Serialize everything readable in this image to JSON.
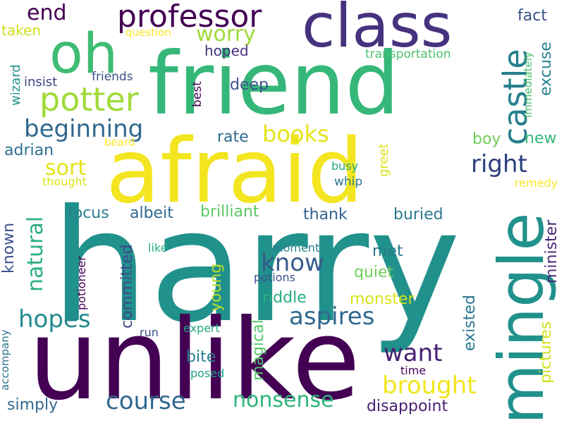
{
  "colors": {
    "background": "#ffffff",
    "palette": [
      "#440154",
      "#46327e",
      "#365c8d",
      "#277f8e",
      "#1fa187",
      "#4ac16d",
      "#a0da39",
      "#fde725"
    ]
  },
  "words": [
    {
      "text": "harry",
      "color": "#21918c"
    },
    {
      "text": "unlike",
      "color": "#440154"
    },
    {
      "text": "afraid",
      "color": "#f3e51f"
    },
    {
      "text": "friend",
      "color": "#35b779"
    },
    {
      "text": "class",
      "color": "#46327e"
    },
    {
      "text": "oh",
      "color": "#3fbc73"
    },
    {
      "text": "mingle",
      "color": "#21918c"
    },
    {
      "text": "professor",
      "color": "#440154"
    },
    {
      "text": "potter",
      "color": "#a0da39"
    },
    {
      "text": "castle",
      "color": "#277f8e"
    },
    {
      "text": "beginning",
      "color": "#31688e"
    },
    {
      "text": "right",
      "color": "#2c3f7e"
    },
    {
      "text": "books",
      "color": "#e5e419"
    },
    {
      "text": "know",
      "color": "#365c8d"
    },
    {
      "text": "aspires",
      "color": "#31688e"
    },
    {
      "text": "hopes",
      "color": "#23898e"
    },
    {
      "text": "want",
      "color": "#482173"
    },
    {
      "text": "brought",
      "color": "#f1e51d"
    },
    {
      "text": "course",
      "color": "#31688e"
    },
    {
      "text": "nonsense",
      "color": "#2fb47c"
    },
    {
      "text": "natural",
      "color": "#2ab07f"
    },
    {
      "text": "sort",
      "color": "#e2e418"
    },
    {
      "text": "worry",
      "color": "#a0da39"
    },
    {
      "text": "end",
      "color": "#440154"
    },
    {
      "text": "fact",
      "color": "#3b528b"
    },
    {
      "text": "hoped",
      "color": "#46327e"
    },
    {
      "text": "deep",
      "color": "#3b528b"
    },
    {
      "text": "rate",
      "color": "#31688e"
    },
    {
      "text": "boy",
      "color": "#6ece58"
    },
    {
      "text": "new",
      "color": "#35b779"
    },
    {
      "text": "excuse",
      "color": "#26828e"
    },
    {
      "text": "adrian",
      "color": "#2c728e"
    },
    {
      "text": "focus",
      "color": "#27808e"
    },
    {
      "text": "albeit",
      "color": "#31688e"
    },
    {
      "text": "brilliant",
      "color": "#5ec962"
    },
    {
      "text": "thank",
      "color": "#33628d"
    },
    {
      "text": "buried",
      "color": "#2a788e"
    },
    {
      "text": "met",
      "color": "#287c8e"
    },
    {
      "text": "quiet",
      "color": "#6ece58"
    },
    {
      "text": "riddle",
      "color": "#29af7f"
    },
    {
      "text": "monster",
      "color": "#d8e219"
    },
    {
      "text": "committed",
      "color": "#3e4989"
    },
    {
      "text": "young",
      "color": "#b5de2b"
    },
    {
      "text": "existed",
      "color": "#2a788e"
    },
    {
      "text": "minister",
      "color": "#482878"
    },
    {
      "text": "pictures",
      "color": "#d0e11c"
    },
    {
      "text": "bite",
      "color": "#277f8e"
    },
    {
      "text": "magical",
      "color": "#52c569"
    },
    {
      "text": "disappoint",
      "color": "#482173"
    },
    {
      "text": "simply",
      "color": "#31688e"
    },
    {
      "text": "known",
      "color": "#3b528b"
    },
    {
      "text": "taken",
      "color": "#d0e11c"
    },
    {
      "text": "question",
      "color": "#fde725"
    },
    {
      "text": "wizard",
      "color": "#21918c"
    },
    {
      "text": "insist",
      "color": "#414487"
    },
    {
      "text": "friends",
      "color": "#3b528b"
    },
    {
      "text": "best",
      "color": "#440154"
    },
    {
      "text": "transportation",
      "color": "#4ac16d"
    },
    {
      "text": "immediately",
      "color": "#4ac16d"
    },
    {
      "text": "beard",
      "color": "#fde725"
    },
    {
      "text": "busy",
      "color": "#22a884"
    },
    {
      "text": "greet",
      "color": "#dde318"
    },
    {
      "text": "thought",
      "color": "#dde318"
    },
    {
      "text": "whip",
      "color": "#2a788e"
    },
    {
      "text": "remedy",
      "color": "#fde725"
    },
    {
      "text": "like",
      "color": "#2ab07f"
    },
    {
      "text": "moment",
      "color": "#26828e"
    },
    {
      "text": "potions",
      "color": "#3b528b"
    },
    {
      "text": "potioneer",
      "color": "#440154"
    },
    {
      "text": "run",
      "color": "#3b528b"
    },
    {
      "text": "expert",
      "color": "#22a884"
    },
    {
      "text": "posed",
      "color": "#1fa187"
    },
    {
      "text": "time",
      "color": "#440154"
    },
    {
      "text": "accompany",
      "color": "#2c728e"
    }
  ]
}
